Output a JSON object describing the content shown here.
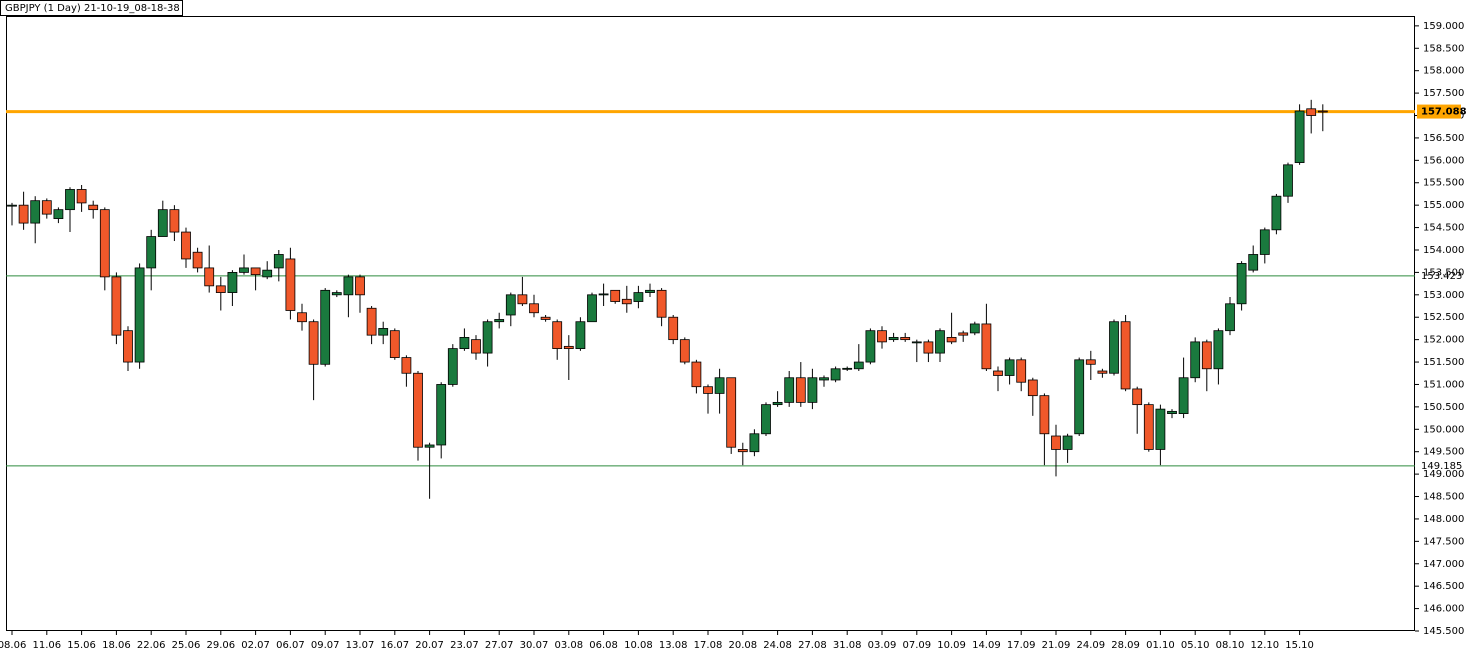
{
  "chart_data": {
    "type": "candlestick",
    "title": "GBPJPY (1 Day) 21-10-19_08-18-38",
    "categories": [
      "08.06",
      null,
      null,
      "11.06",
      null,
      null,
      "15.06",
      null,
      null,
      "18.06",
      null,
      null,
      "22.06",
      null,
      null,
      "25.06",
      null,
      null,
      "29.06",
      null,
      null,
      "02.07",
      null,
      null,
      "06.07",
      null,
      null,
      "09.07",
      null,
      null,
      "13.07",
      null,
      null,
      "16.07",
      null,
      null,
      "20.07",
      null,
      null,
      "23.07",
      null,
      null,
      "27.07",
      null,
      null,
      "30.07",
      null,
      null,
      "03.08",
      null,
      null,
      "06.08",
      null,
      null,
      "10.08",
      null,
      null,
      "13.08",
      null,
      null,
      "17.08",
      null,
      null,
      "20.08",
      null,
      null,
      "24.08",
      null,
      null,
      "27.08",
      null,
      null,
      "31.08",
      null,
      null,
      "03.09",
      null,
      null,
      "07.09",
      null,
      null,
      "10.09",
      null,
      null,
      "14.09",
      null,
      null,
      "17.09",
      null,
      null,
      "21.09",
      null,
      null,
      "24.09",
      null,
      null,
      "28.09",
      null,
      null,
      "01.10",
      null,
      null,
      "05.10",
      null,
      null,
      "08.10",
      null,
      null,
      "12.10",
      null,
      null,
      "15.10",
      null,
      null
    ],
    "open": [
      154.98,
      155.0,
      154.6,
      155.1,
      154.7,
      154.9,
      155.35,
      155.0,
      154.9,
      153.4,
      152.2,
      151.5,
      153.6,
      154.3,
      154.9,
      154.4,
      153.95,
      153.6,
      153.2,
      153.05,
      153.5,
      153.6,
      153.4,
      153.6,
      153.8,
      152.6,
      152.4,
      151.45,
      153.0,
      153.0,
      153.4,
      152.7,
      152.1,
      152.2,
      151.6,
      151.25,
      149.6,
      149.65,
      151.0,
      151.8,
      152.0,
      151.7,
      152.4,
      152.55,
      153.0,
      152.8,
      152.5,
      152.4,
      151.85,
      151.8,
      152.4,
      153.0,
      153.1,
      152.9,
      152.85,
      153.05,
      153.1,
      152.5,
      152.0,
      151.5,
      150.95,
      150.8,
      151.15,
      149.55,
      149.5,
      149.9,
      150.55,
      150.6,
      151.15,
      150.6,
      151.1,
      151.1,
      151.35,
      151.35,
      151.5,
      152.2,
      152.0,
      152.05,
      151.95,
      151.95,
      151.7,
      152.05,
      152.15,
      152.15,
      152.35,
      151.3,
      151.2,
      151.55,
      151.1,
      150.75,
      149.85,
      149.55,
      149.9,
      151.55,
      151.3,
      151.25,
      152.4,
      150.9,
      150.55,
      149.55,
      150.35,
      150.35,
      151.15,
      151.95,
      151.35,
      152.2,
      152.8,
      153.55,
      153.9,
      154.45,
      155.2,
      155.95,
      157.15,
      157.1
    ],
    "high": [
      155.05,
      155.3,
      155.2,
      155.15,
      154.95,
      155.4,
      155.45,
      155.1,
      154.95,
      153.5,
      152.3,
      153.7,
      154.45,
      155.1,
      155.0,
      154.5,
      154.05,
      154.1,
      153.4,
      153.55,
      153.9,
      153.6,
      153.75,
      154.0,
      154.05,
      152.8,
      152.45,
      153.15,
      153.1,
      153.45,
      153.45,
      152.75,
      152.4,
      152.25,
      151.65,
      151.3,
      149.7,
      151.05,
      151.9,
      152.25,
      152.1,
      152.45,
      152.6,
      153.05,
      153.4,
      153.0,
      152.55,
      152.45,
      152.1,
      152.5,
      153.05,
      153.25,
      153.1,
      153.2,
      153.2,
      153.25,
      153.15,
      152.55,
      152.05,
      151.55,
      151.0,
      151.35,
      151.15,
      149.7,
      150.0,
      150.6,
      150.85,
      151.3,
      151.5,
      151.35,
      151.2,
      151.4,
      151.4,
      151.9,
      152.25,
      152.3,
      152.15,
      152.15,
      152.0,
      152.0,
      152.25,
      152.6,
      152.2,
      152.4,
      152.8,
      151.4,
      151.6,
      151.6,
      151.15,
      150.8,
      150.1,
      149.9,
      151.6,
      151.75,
      151.35,
      152.45,
      152.55,
      150.95,
      150.6,
      150.55,
      150.45,
      151.6,
      152.05,
      152.0,
      152.25,
      152.95,
      153.75,
      154.1,
      154.5,
      155.25,
      155.95,
      157.25,
      157.35,
      157.25
    ],
    "low": [
      154.55,
      154.45,
      154.15,
      154.7,
      154.6,
      154.4,
      154.85,
      154.7,
      153.1,
      151.9,
      151.3,
      151.35,
      153.1,
      154.3,
      154.2,
      153.6,
      153.5,
      153.05,
      152.65,
      152.75,
      153.45,
      153.1,
      153.35,
      153.3,
      152.45,
      152.2,
      150.65,
      151.4,
      152.95,
      152.5,
      152.6,
      151.9,
      151.9,
      151.55,
      150.95,
      149.3,
      148.45,
      149.35,
      150.95,
      151.75,
      151.55,
      151.4,
      152.25,
      152.3,
      152.75,
      152.5,
      152.4,
      151.55,
      151.1,
      151.75,
      152.4,
      152.75,
      152.8,
      152.6,
      152.7,
      152.95,
      152.3,
      151.9,
      151.45,
      150.8,
      150.35,
      150.35,
      149.45,
      149.2,
      149.4,
      149.85,
      150.5,
      150.5,
      150.5,
      150.45,
      150.95,
      151.05,
      151.3,
      151.3,
      151.45,
      151.8,
      151.95,
      151.95,
      151.5,
      151.5,
      151.5,
      151.9,
      151.95,
      152.1,
      151.3,
      150.85,
      151.0,
      150.85,
      150.3,
      149.2,
      148.95,
      149.25,
      149.85,
      151.1,
      151.15,
      151.2,
      150.85,
      149.9,
      149.5,
      149.2,
      150.25,
      150.25,
      151.05,
      150.85,
      151.0,
      152.1,
      152.65,
      153.5,
      153.7,
      154.35,
      155.05,
      155.9,
      156.6,
      156.65
    ],
    "close": [
      155.0,
      154.6,
      155.1,
      154.8,
      154.9,
      155.35,
      155.05,
      154.9,
      153.4,
      152.1,
      151.5,
      153.6,
      154.3,
      154.9,
      154.4,
      153.8,
      153.6,
      153.2,
      153.05,
      153.5,
      153.6,
      153.45,
      153.55,
      153.9,
      152.65,
      152.4,
      151.45,
      153.1,
      153.05,
      153.4,
      153.0,
      152.1,
      152.25,
      151.6,
      151.25,
      149.6,
      149.65,
      151.0,
      151.8,
      152.05,
      151.7,
      152.4,
      152.45,
      153.0,
      152.8,
      152.6,
      152.45,
      151.8,
      151.8,
      152.4,
      153.0,
      153.02,
      152.85,
      152.8,
      153.05,
      153.1,
      152.5,
      152.0,
      151.5,
      150.95,
      150.8,
      151.15,
      149.6,
      149.5,
      149.9,
      150.55,
      150.6,
      151.15,
      150.6,
      151.15,
      151.15,
      151.35,
      151.36,
      151.5,
      152.2,
      151.95,
      152.05,
      152.0,
      151.95,
      151.7,
      152.2,
      151.95,
      152.1,
      152.35,
      151.35,
      151.2,
      151.55,
      151.05,
      150.75,
      149.9,
      149.55,
      149.85,
      151.55,
      151.45,
      151.25,
      152.4,
      150.9,
      150.55,
      149.55,
      150.45,
      150.4,
      151.15,
      151.95,
      151.35,
      152.2,
      152.8,
      153.7,
      153.9,
      154.45,
      155.2,
      155.9,
      157.1,
      157.0,
      157.09
    ],
    "up_color": "#1a7a3e",
    "down_color": "#f0582a",
    "ylim": [
      145.5,
      159.22
    ],
    "yticks": [
      {
        "value": 145.5,
        "label": "145.500"
      },
      {
        "value": 146,
        "label": "146.000"
      },
      {
        "value": 146.5,
        "label": "146.500"
      },
      {
        "value": 147,
        "label": "147.000"
      },
      {
        "value": 147.5,
        "label": "147.500"
      },
      {
        "value": 148,
        "label": "148.000"
      },
      {
        "value": 148.5,
        "label": "148.500"
      },
      {
        "value": 149,
        "label": "149.000"
      },
      {
        "value": 149.5,
        "label": "149.500"
      },
      {
        "value": 150,
        "label": "150.000"
      },
      {
        "value": 150.5,
        "label": "150.500"
      },
      {
        "value": 151,
        "label": "151.000"
      },
      {
        "value": 151.5,
        "label": "151.500"
      },
      {
        "value": 152,
        "label": "152.000"
      },
      {
        "value": 152.5,
        "label": "152.500"
      },
      {
        "value": 153,
        "label": "153.000"
      },
      {
        "value": 153.5,
        "label": "153.500"
      },
      {
        "value": 154,
        "label": "154.000"
      },
      {
        "value": 154.5,
        "label": "154.500"
      },
      {
        "value": 155,
        "label": "155.000"
      },
      {
        "value": 155.5,
        "label": "155.500"
      },
      {
        "value": 156,
        "label": "156.000"
      },
      {
        "value": 156.5,
        "label": "156.500"
      },
      {
        "value": 157,
        "label": "157.000"
      },
      {
        "value": 157.5,
        "label": "157.500"
      },
      {
        "value": 158,
        "label": "158.000"
      },
      {
        "value": 158.5,
        "label": "158.500"
      },
      {
        "value": 159,
        "label": "159.000"
      }
    ],
    "levels": [
      157.088,
      153.423,
      149.185
    ],
    "level_colors": [
      "#ffa500",
      "#2e8b3e",
      "#2e8b3e"
    ]
  }
}
